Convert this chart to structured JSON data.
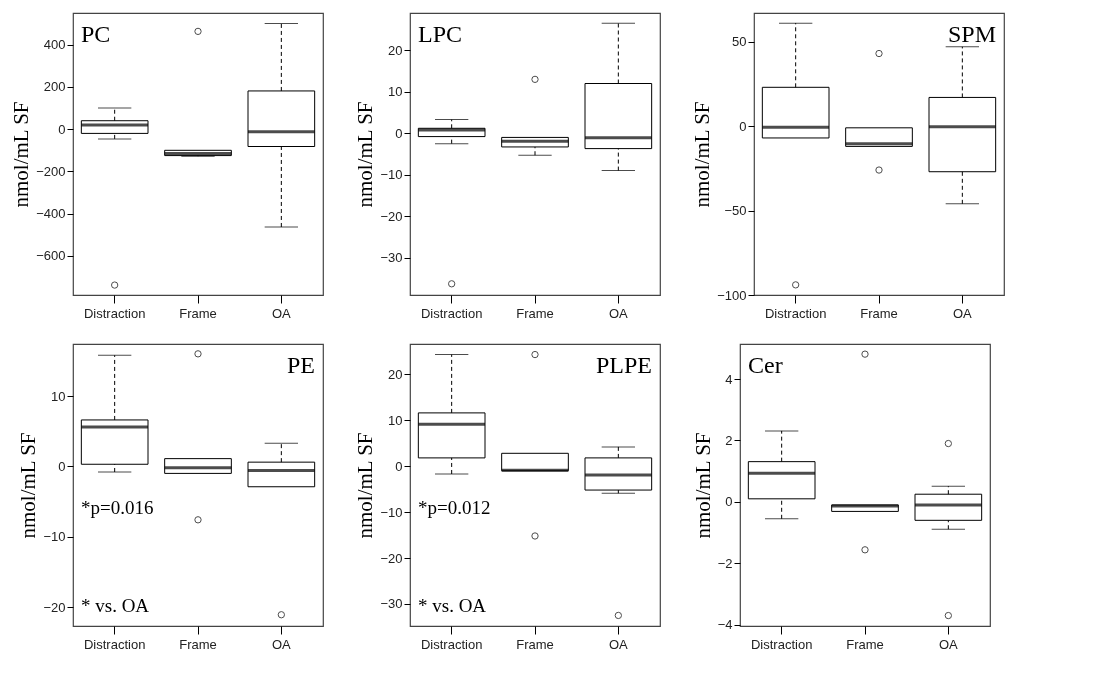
{
  "chart_data": [
    {
      "type": "box",
      "title": "PC",
      "ylabel": "nmol/mL SF",
      "categories": [
        "Distraction",
        "Frame",
        "OA"
      ],
      "ylim": [
        -785,
        550
      ],
      "yticks": [
        -600,
        -400,
        -200,
        0,
        200,
        400
      ],
      "boxes": [
        {
          "low": -46,
          "q1": -20,
          "median": 20,
          "q3": 40,
          "high": 100,
          "outliers": [
            -738
          ]
        },
        {
          "low": -128,
          "q1": -125,
          "median": -115,
          "q3": -100,
          "high": -100,
          "outliers": [
            463
          ]
        },
        {
          "low": -463,
          "q1": -82,
          "median": -12,
          "q3": 181,
          "high": 500
        }
      ]
    },
    {
      "type": "box",
      "title": "LPC",
      "ylabel": "nmol/mL SF",
      "categories": [
        "Distraction",
        "Frame",
        "OA"
      ],
      "ylim": [
        -39,
        29
      ],
      "yticks": [
        -30,
        -20,
        -10,
        0,
        10,
        20
      ],
      "boxes": [
        {
          "low": -2.5,
          "q1": -0.8,
          "median": 0.8,
          "q3": 1.2,
          "high": 3.3,
          "outliers": [
            -36.3
          ]
        },
        {
          "low": -5.3,
          "q1": -3.3,
          "median": -1.9,
          "q3": -1,
          "high": -1,
          "outliers": [
            13
          ]
        },
        {
          "low": -9,
          "q1": -3.7,
          "median": -1.1,
          "q3": 12,
          "high": 26.5
        }
      ]
    },
    {
      "type": "box",
      "title": "SPM",
      "ylabel": "nmol/mL SF",
      "categories": [
        "Distraction",
        "Frame",
        "OA"
      ],
      "ylim": [
        -100,
        67
      ],
      "yticks": [
        -100,
        -50,
        0,
        50
      ],
      "boxes": [
        {
          "low": -7,
          "q1": -7,
          "median": -0.6,
          "q3": 23,
          "high": 61,
          "outliers": [
            -94
          ]
        },
        {
          "low": -12,
          "q1": -12,
          "median": -10.5,
          "q3": -1,
          "high": -1,
          "outliers": [
            43,
            -26
          ]
        },
        {
          "low": -46,
          "q1": -27,
          "median": -0.4,
          "q3": 17,
          "high": 47
        }
      ]
    },
    {
      "type": "box",
      "title": "PE",
      "ylabel": "nmol/mL SF",
      "categories": [
        "Distraction",
        "Frame",
        "OA"
      ],
      "ylim": [
        -22.7,
        17.4
      ],
      "yticks": [
        -20,
        -10,
        0,
        10
      ],
      "annotations": [
        "*p=0.016",
        "* vs. OA"
      ],
      "boxes": [
        {
          "low": -0.8,
          "q1": 0.3,
          "median": 5.6,
          "q3": 6.6,
          "high": 15.8
        },
        {
          "low": -1,
          "q1": -1,
          "median": -0.2,
          "q3": 1.1,
          "high": 1.1,
          "outliers": [
            16,
            -7.6
          ]
        },
        {
          "low": -2.9,
          "q1": -2.9,
          "median": -0.6,
          "q3": 0.6,
          "high": 3.3,
          "outliers": [
            -21.1
          ]
        }
      ]
    },
    {
      "type": "box",
      "title": "PLPE",
      "ylabel": "nmol/mL SF",
      "categories": [
        "Distraction",
        "Frame",
        "OA"
      ],
      "ylim": [
        -34.8,
        26.6
      ],
      "yticks": [
        -30,
        -20,
        -10,
        0,
        10,
        20
      ],
      "annotations": [
        "*p=0.012",
        "* vs. OA"
      ],
      "boxes": [
        {
          "low": -1.7,
          "q1": 1.8,
          "median": 9.1,
          "q3": 11.6,
          "high": 24.3
        },
        {
          "low": -1,
          "q1": -1,
          "median": -0.9,
          "q3": 2.8,
          "high": 2.8,
          "outliers": [
            24.3,
            -15.2
          ]
        },
        {
          "low": -5.9,
          "q1": -5.2,
          "median": -1.9,
          "q3": 1.8,
          "high": 4.2,
          "outliers": [
            -32.5
          ]
        }
      ]
    },
    {
      "type": "box",
      "title": "Cer",
      "ylabel": "nmol/mL SF",
      "categories": [
        "Distraction",
        "Frame",
        "OA"
      ],
      "ylim": [
        -4.04,
        5.14
      ],
      "yticks": [
        -4,
        -2,
        0,
        2,
        4
      ],
      "boxes": [
        {
          "low": -0.55,
          "q1": 0.1,
          "median": 0.93,
          "q3": 1.31,
          "high": 2.31
        },
        {
          "low": -0.31,
          "q1": -0.31,
          "median": -0.13,
          "q3": -0.1,
          "high": -0.1,
          "outliers": [
            4.81,
            -1.56
          ]
        },
        {
          "low": -0.89,
          "q1": -0.6,
          "median": -0.1,
          "q3": 0.25,
          "high": 0.51,
          "outliers": [
            1.9,
            -3.7
          ]
        }
      ]
    }
  ]
}
